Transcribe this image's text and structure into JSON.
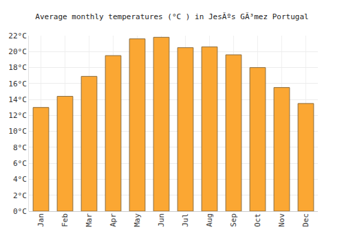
{
  "chart_data": {
    "type": "bar",
    "title": "Average monthly temperatures (°C ) in JesÃºs GÃ³mez Portugal",
    "categories": [
      "Jan",
      "Feb",
      "Mar",
      "Apr",
      "May",
      "Jun",
      "Jul",
      "Aug",
      "Sep",
      "Oct",
      "Nov",
      "Dec"
    ],
    "values": [
      13.0,
      14.4,
      16.9,
      19.5,
      21.6,
      21.8,
      20.5,
      20.6,
      19.6,
      18.0,
      15.5,
      13.5
    ],
    "color": "#fba733",
    "ylim": [
      0,
      22
    ],
    "yticks": [
      {
        "value": 0,
        "label": "0°C"
      },
      {
        "value": 2,
        "label": "2°C"
      },
      {
        "value": 4,
        "label": "4°C"
      },
      {
        "value": 6,
        "label": "6°C"
      },
      {
        "value": 8,
        "label": "8°C"
      },
      {
        "value": 10,
        "label": "10°C"
      },
      {
        "value": 12,
        "label": "12°C"
      },
      {
        "value": 14,
        "label": "14°C"
      },
      {
        "value": 16,
        "label": "16°C"
      },
      {
        "value": 18,
        "label": "18°C"
      },
      {
        "value": 20,
        "label": "20°C"
      },
      {
        "value": 22,
        "label": "22°C"
      }
    ],
    "grid": true
  }
}
